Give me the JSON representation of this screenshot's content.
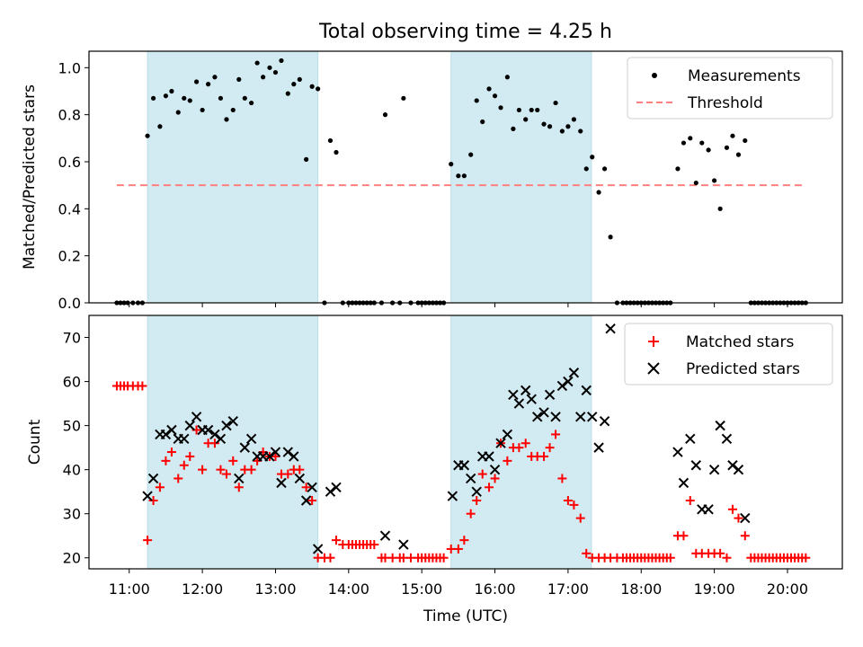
{
  "title": "Total observing time = 4.25 h",
  "x_axis": {
    "label": "Time (UTC)",
    "range_hours": [
      10.45,
      20.75
    ],
    "ticks": [
      {
        "value": 11,
        "label": "11:00"
      },
      {
        "value": 12,
        "label": "12:00"
      },
      {
        "value": 13,
        "label": "13:00"
      },
      {
        "value": 14,
        "label": "14:00"
      },
      {
        "value": 15,
        "label": "15:00"
      },
      {
        "value": 16,
        "label": "16:00"
      },
      {
        "value": 17,
        "label": "17:00"
      },
      {
        "value": 18,
        "label": "18:00"
      },
      {
        "value": 19,
        "label": "19:00"
      },
      {
        "value": 20,
        "label": "20:00"
      }
    ]
  },
  "shaded_intervals_hours": [
    [
      11.25,
      13.58
    ],
    [
      15.4,
      17.32
    ]
  ],
  "colors": {
    "shade": "#add8e6",
    "measurements": "#000000",
    "threshold": "#ff7f7f",
    "matched": "#ff0000",
    "predicted": "#000000"
  },
  "chart_data": [
    {
      "type": "scatter",
      "ylabel": "Matched/Predicted stars",
      "ylim": [
        0,
        1.07
      ],
      "yticks": [
        "0.0",
        "0.2",
        "0.4",
        "0.6",
        "0.8",
        "1.0"
      ],
      "yticks_values": [
        0,
        0.2,
        0.4,
        0.6,
        0.8,
        1.0
      ],
      "legend_position": "upper right",
      "series": [
        {
          "name": "Measurements",
          "marker": "dot",
          "x": [
            10.83,
            10.88,
            10.93,
            10.98,
            11.05,
            11.12,
            11.18,
            11.25,
            11.33,
            11.42,
            11.5,
            11.58,
            11.67,
            11.75,
            11.83,
            11.92,
            12.0,
            12.08,
            12.17,
            12.25,
            12.33,
            12.42,
            12.5,
            12.58,
            12.67,
            12.75,
            12.83,
            12.92,
            13.0,
            13.08,
            13.17,
            13.25,
            13.33,
            13.42,
            13.5,
            13.58,
            13.67,
            13.75,
            13.83,
            13.92,
            14.0,
            14.05,
            14.1,
            14.15,
            14.2,
            14.25,
            14.3,
            14.35,
            14.45,
            14.5,
            14.6,
            14.7,
            14.75,
            14.85,
            14.95,
            15.0,
            15.05,
            15.1,
            15.15,
            15.2,
            15.25,
            15.3,
            15.4,
            15.5,
            15.58,
            15.67,
            15.75,
            15.83,
            15.92,
            16.0,
            16.08,
            16.17,
            16.25,
            16.33,
            16.42,
            16.5,
            16.58,
            16.67,
            16.75,
            16.83,
            16.92,
            17.0,
            17.08,
            17.17,
            17.25,
            17.33,
            17.42,
            17.5,
            17.58,
            17.67,
            17.75,
            17.8,
            17.85,
            17.9,
            17.95,
            18.0,
            18.05,
            18.1,
            18.15,
            18.2,
            18.25,
            18.3,
            18.35,
            18.4,
            18.5,
            18.58,
            18.67,
            18.75,
            18.83,
            18.92,
            19.0,
            19.08,
            19.17,
            19.25,
            19.33,
            19.42,
            19.5,
            19.55,
            19.6,
            19.65,
            19.7,
            19.75,
            19.8,
            19.85,
            19.9,
            19.95,
            20.0,
            20.05,
            20.1,
            20.15,
            20.2,
            20.25
          ],
          "y": [
            0,
            0,
            0,
            0,
            0,
            0,
            0,
            0.71,
            0.87,
            0.75,
            0.88,
            0.9,
            0.81,
            0.87,
            0.86,
            0.94,
            0.82,
            0.93,
            0.96,
            0.87,
            0.78,
            0.82,
            0.95,
            0.87,
            0.85,
            1.02,
            0.96,
            1.0,
            0.98,
            1.03,
            0.89,
            0.93,
            0.95,
            0.61,
            0.92,
            0.91,
            0,
            0.69,
            0.64,
            0,
            0,
            0,
            0,
            0,
            0,
            0,
            0,
            0,
            0,
            0.8,
            0,
            0,
            0.87,
            0,
            0,
            0,
            0,
            0,
            0,
            0,
            0,
            0,
            0.59,
            0.54,
            0.54,
            0.63,
            0.86,
            0.77,
            0.91,
            0.88,
            0.83,
            0.96,
            0.74,
            0.82,
            0.78,
            0.82,
            0.82,
            0.76,
            0.75,
            0.85,
            0.73,
            0.75,
            0.78,
            0.73,
            0.57,
            0.62,
            0.47,
            0.57,
            0.28,
            0,
            0,
            0,
            0,
            0,
            0,
            0,
            0,
            0,
            0,
            0,
            0,
            0,
            0,
            0,
            0.57,
            0.68,
            0.7,
            0.51,
            0.68,
            0.65,
            0.52,
            0.4,
            0.66,
            0.71,
            0.63,
            0.69,
            0,
            0,
            0,
            0,
            0,
            0,
            0,
            0,
            0,
            0,
            0,
            0,
            0,
            0,
            0,
            0
          ]
        },
        {
          "name": "Threshold",
          "marker": "dashed-line",
          "x": [
            10.83,
            20.25
          ],
          "y": [
            0.5,
            0.5
          ]
        }
      ]
    },
    {
      "type": "scatter",
      "ylabel": "Count",
      "ylim": [
        17.5,
        75
      ],
      "yticks": [
        "20",
        "30",
        "40",
        "50",
        "60",
        "70"
      ],
      "yticks_values": [
        20,
        30,
        40,
        50,
        60,
        70
      ],
      "legend_position": "upper right",
      "series": [
        {
          "name": "Matched stars",
          "marker": "plus",
          "x": [
            10.83,
            10.88,
            10.93,
            10.98,
            11.05,
            11.12,
            11.18,
            11.25,
            11.33,
            11.42,
            11.5,
            11.58,
            11.67,
            11.75,
            11.83,
            11.92,
            12.0,
            12.08,
            12.17,
            12.25,
            12.33,
            12.42,
            12.5,
            12.58,
            12.67,
            12.75,
            12.83,
            12.92,
            13.0,
            13.08,
            13.17,
            13.25,
            13.33,
            13.42,
            13.5,
            13.58,
            13.67,
            13.75,
            13.83,
            13.92,
            14.0,
            14.05,
            14.1,
            14.15,
            14.2,
            14.25,
            14.3,
            14.35,
            14.45,
            14.5,
            14.6,
            14.7,
            14.75,
            14.85,
            14.95,
            15.0,
            15.05,
            15.1,
            15.15,
            15.2,
            15.25,
            15.3,
            15.4,
            15.5,
            15.58,
            15.67,
            15.75,
            15.83,
            15.92,
            16.0,
            16.08,
            16.17,
            16.25,
            16.33,
            16.42,
            16.5,
            16.58,
            16.67,
            16.75,
            16.83,
            16.92,
            17.0,
            17.08,
            17.17,
            17.25,
            17.33,
            17.42,
            17.5,
            17.58,
            17.67,
            17.75,
            17.8,
            17.85,
            17.9,
            17.95,
            18.0,
            18.05,
            18.1,
            18.15,
            18.2,
            18.25,
            18.3,
            18.35,
            18.4,
            18.5,
            18.58,
            18.67,
            18.75,
            18.83,
            18.92,
            19.0,
            19.08,
            19.17,
            19.25,
            19.33,
            19.42,
            19.5,
            19.55,
            19.6,
            19.65,
            19.7,
            19.75,
            19.8,
            19.85,
            19.9,
            19.95,
            20.0,
            20.05,
            20.1,
            20.15,
            20.2,
            20.25
          ],
          "y": [
            59,
            59,
            59,
            59,
            59,
            59,
            59,
            24,
            33,
            36,
            42,
            44,
            38,
            41,
            43,
            49,
            40,
            46,
            46,
            40,
            39,
            42,
            36,
            40,
            40,
            42,
            44,
            43,
            43,
            39,
            39,
            40,
            40,
            36,
            33,
            20,
            20,
            20,
            24,
            23,
            23,
            23,
            23,
            23,
            23,
            23,
            23,
            23,
            20,
            20,
            20,
            20,
            20,
            20,
            20,
            20,
            20,
            20,
            20,
            20,
            20,
            20,
            22,
            22,
            24,
            30,
            33,
            39,
            36,
            38,
            46,
            42,
            45,
            45,
            46,
            43,
            43,
            43,
            45,
            48,
            38,
            33,
            32,
            29,
            21,
            20,
            20,
            20,
            20,
            20,
            20,
            20,
            20,
            20,
            20,
            20,
            20,
            20,
            20,
            20,
            20,
            20,
            20,
            20,
            25,
            25,
            33,
            21,
            21,
            21,
            21,
            21,
            20,
            31,
            29,
            25,
            20,
            20,
            20,
            20,
            20,
            20,
            20,
            20,
            20,
            20,
            20,
            20,
            20,
            20,
            20,
            20
          ]
        },
        {
          "name": "Predicted stars",
          "marker": "x",
          "x": [
            11.25,
            11.33,
            11.42,
            11.5,
            11.58,
            11.67,
            11.75,
            11.83,
            11.92,
            12.0,
            12.08,
            12.17,
            12.25,
            12.33,
            12.42,
            12.5,
            12.58,
            12.67,
            12.75,
            12.83,
            12.92,
            13.0,
            13.08,
            13.17,
            13.25,
            13.33,
            13.42,
            13.5,
            13.58,
            13.75,
            13.83,
            14.5,
            14.75,
            15.42,
            15.5,
            15.58,
            15.67,
            15.75,
            15.83,
            15.92,
            16.0,
            16.08,
            16.17,
            16.25,
            16.33,
            16.42,
            16.5,
            16.58,
            16.67,
            16.75,
            16.83,
            16.92,
            17.0,
            17.08,
            17.17,
            17.25,
            17.33,
            17.42,
            17.5,
            17.58,
            18.5,
            18.58,
            18.67,
            18.75,
            18.83,
            18.92,
            19.0,
            19.08,
            19.17,
            19.25,
            19.33,
            19.42
          ],
          "y": [
            34,
            38,
            48,
            48,
            49,
            47,
            47,
            50,
            52,
            49,
            49,
            48,
            47,
            50,
            51,
            38,
            45,
            47,
            43,
            43,
            43,
            44,
            37,
            44,
            43,
            38,
            33,
            36,
            22,
            35,
            36,
            25,
            23,
            34,
            41,
            41,
            38,
            35,
            43,
            43,
            40,
            46,
            48,
            57,
            55,
            58,
            56,
            52,
            53,
            57,
            52,
            59,
            60,
            62,
            52,
            58,
            52,
            45,
            51,
            72,
            44,
            37,
            47,
            41,
            31,
            31,
            40,
            50,
            47,
            41,
            40,
            29
          ]
        }
      ]
    }
  ]
}
